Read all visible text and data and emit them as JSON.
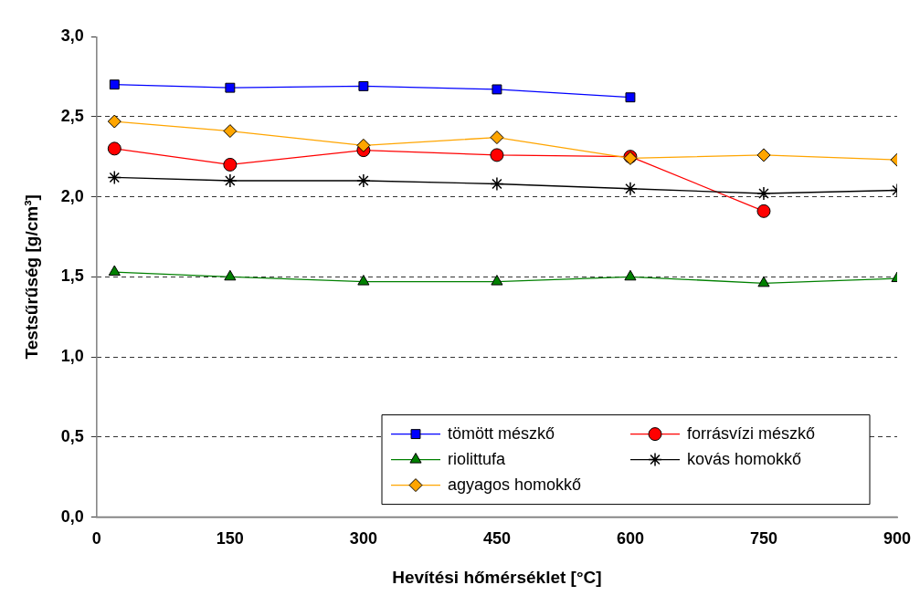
{
  "chart_data": {
    "type": "line",
    "xlabel": "Hevítési hőmérséklet [°C]",
    "ylabel": "Testsűrűség [g/cm³]",
    "xlim": [
      0,
      900
    ],
    "xticks": [
      0,
      150,
      300,
      450,
      600,
      750,
      900
    ],
    "ylim": [
      0,
      3
    ],
    "yticks": [
      {
        "value": 0,
        "label": "0,0"
      },
      {
        "value": 0.5,
        "label": "0,5"
      },
      {
        "value": 1,
        "label": "1,0"
      },
      {
        "value": 1.5,
        "label": "1,5"
      },
      {
        "value": 2,
        "label": "2,0"
      },
      {
        "value": 2.5,
        "label": "2,5"
      },
      {
        "value": 3,
        "label": "3,0"
      }
    ],
    "x": [
      20,
      150,
      300,
      450,
      600,
      750,
      900
    ],
    "grid": "y",
    "legend": "bottom right",
    "line_style": "solid",
    "series": [
      {
        "name": "tömött mészkő",
        "color": "#0000ff",
        "marker": "square",
        "values": [
          2.7,
          2.68,
          2.69,
          2.67,
          2.62,
          null,
          null
        ]
      },
      {
        "name": "forrásvízi mészkő",
        "color": "#ff0000",
        "marker": "circle",
        "values": [
          2.3,
          2.2,
          2.29,
          2.26,
          2.25,
          1.91,
          null
        ]
      },
      {
        "name": "riolittufa",
        "color": "#008000",
        "marker": "triangle",
        "values": [
          1.53,
          1.5,
          1.47,
          1.47,
          1.5,
          1.46,
          1.49
        ]
      },
      {
        "name": "kovás homokkő",
        "color": "#000000",
        "marker": "cross",
        "values": [
          2.12,
          2.1,
          2.1,
          2.08,
          2.05,
          2.02,
          2.04
        ]
      },
      {
        "name": "agyagos homokkő",
        "color": "#ffa500",
        "marker": "diamond",
        "values": [
          2.47,
          2.41,
          2.32,
          2.37,
          2.24,
          2.26,
          2.23
        ]
      }
    ]
  }
}
